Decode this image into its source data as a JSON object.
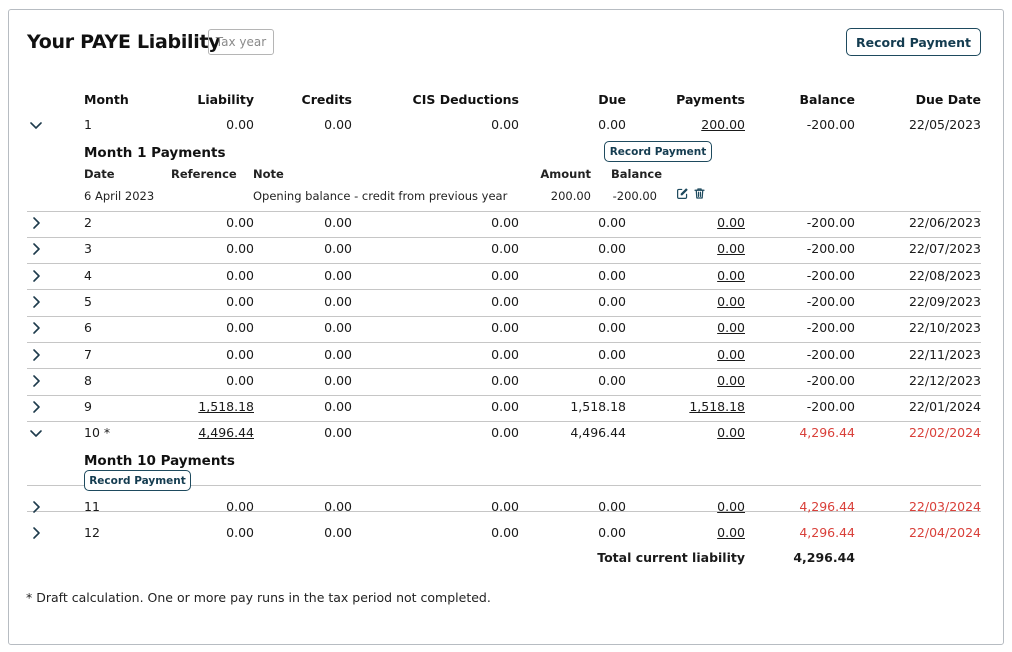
{
  "header": {
    "title": "Your PAYE Liability",
    "tax_year_placeholder": "Tax year",
    "record_payment_label": "Record Payment"
  },
  "columns": [
    "Month",
    "Liability",
    "Credits",
    "CIS Deductions",
    "Due",
    "Payments",
    "Balance",
    "Due Date"
  ],
  "rows": [
    {
      "month": "1",
      "liability": "0.00",
      "credits": "0.00",
      "cis": "0.00",
      "due": "0.00",
      "payments": "200.00",
      "balance": "-200.00",
      "due_date": "22/05/2023",
      "expanded": true
    },
    {
      "month": "2",
      "liability": "0.00",
      "credits": "0.00",
      "cis": "0.00",
      "due": "0.00",
      "payments": "0.00",
      "balance": "-200.00",
      "due_date": "22/06/2023"
    },
    {
      "month": "3",
      "liability": "0.00",
      "credits": "0.00",
      "cis": "0.00",
      "due": "0.00",
      "payments": "0.00",
      "balance": "-200.00",
      "due_date": "22/07/2023"
    },
    {
      "month": "4",
      "liability": "0.00",
      "credits": "0.00",
      "cis": "0.00",
      "due": "0.00",
      "payments": "0.00",
      "balance": "-200.00",
      "due_date": "22/08/2023"
    },
    {
      "month": "5",
      "liability": "0.00",
      "credits": "0.00",
      "cis": "0.00",
      "due": "0.00",
      "payments": "0.00",
      "balance": "-200.00",
      "due_date": "22/09/2023"
    },
    {
      "month": "6",
      "liability": "0.00",
      "credits": "0.00",
      "cis": "0.00",
      "due": "0.00",
      "payments": "0.00",
      "balance": "-200.00",
      "due_date": "22/10/2023"
    },
    {
      "month": "7",
      "liability": "0.00",
      "credits": "0.00",
      "cis": "0.00",
      "due": "0.00",
      "payments": "0.00",
      "balance": "-200.00",
      "due_date": "22/11/2023"
    },
    {
      "month": "8",
      "liability": "0.00",
      "credits": "0.00",
      "cis": "0.00",
      "due": "0.00",
      "payments": "0.00",
      "balance": "-200.00",
      "due_date": "22/12/2023"
    },
    {
      "month": "9",
      "liability": "1,518.18",
      "credits": "0.00",
      "cis": "0.00",
      "due": "1,518.18",
      "payments": "1,518.18",
      "balance": "-200.00",
      "due_date": "22/01/2024"
    },
    {
      "month": "10 *",
      "liability": "4,496.44",
      "credits": "0.00",
      "cis": "0.00",
      "due": "4,496.44",
      "payments": "0.00",
      "balance": "4,296.44",
      "due_date": "22/02/2024",
      "expanded": true,
      "overdue": true
    },
    {
      "month": "11",
      "liability": "0.00",
      "credits": "0.00",
      "cis": "0.00",
      "due": "0.00",
      "payments": "0.00",
      "balance": "4,296.44",
      "due_date": "22/03/2024",
      "overdue": true
    },
    {
      "month": "12",
      "liability": "0.00",
      "credits": "0.00",
      "cis": "0.00",
      "due": "0.00",
      "payments": "0.00",
      "balance": "4,296.44",
      "due_date": "22/04/2024",
      "overdue": true
    }
  ],
  "month1_payments": {
    "title": "Month 1 Payments",
    "record_payment_label": "Record Payment",
    "columns": [
      "Date",
      "Reference",
      "Note",
      "Amount",
      "Balance"
    ],
    "items": [
      {
        "date": "6 April 2023",
        "reference": "",
        "note": "Opening balance - credit from previous year",
        "amount": "200.00",
        "balance": "-200.00"
      }
    ]
  },
  "month10_payments": {
    "title": "Month 10 Payments",
    "record_payment_label": "Record Payment"
  },
  "totals": {
    "label": "Total current liability",
    "value": "4,296.44"
  },
  "footnote": "* Draft calculation. One or more pay runs in the tax period not completed.",
  "colors": {
    "accent": "#1e4a5e",
    "overdue": "#d9403a",
    "divider": "#c6c6c6"
  }
}
